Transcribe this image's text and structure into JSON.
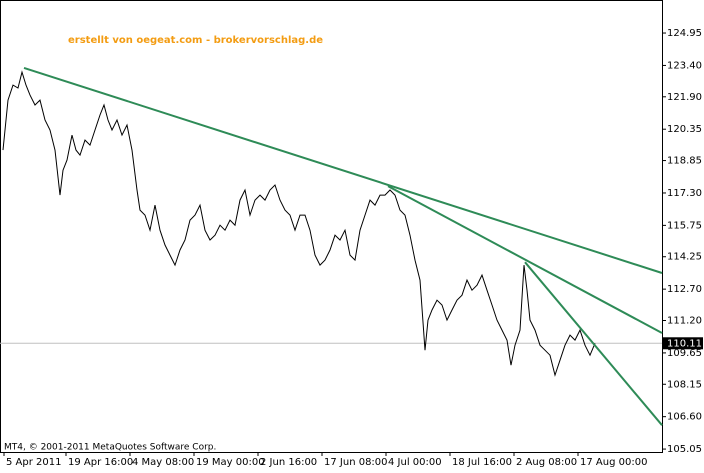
{
  "chart_data": {
    "type": "line",
    "watermark": "erstellt von oegeat.com - brokervorschlag.de",
    "copyright": "MT4, © 2001-2011 MetaQuotes Software Corp.",
    "xlim": [
      0,
      662
    ],
    "ylim": [
      104.91,
      126.53
    ],
    "xticks": [
      {
        "value": 4,
        "label": "5 Apr 2011"
      },
      {
        "value": 66,
        "label": "19 Apr 16:00"
      },
      {
        "value": 130,
        "label": "4 May 08:00"
      },
      {
        "value": 194,
        "label": "19 May 00:00"
      },
      {
        "value": 258,
        "label": "2 Jun 16:00"
      },
      {
        "value": 322,
        "label": "17 Jun 08:00"
      },
      {
        "value": 386,
        "label": "4 Jul 00:00"
      },
      {
        "value": 450,
        "label": "18 Jul 16:00"
      },
      {
        "value": 514,
        "label": "2 Aug 08:00"
      },
      {
        "value": 578,
        "label": "17 Aug 00:00"
      }
    ],
    "yticks": [
      124.95,
      {
        "value": 123.4,
        "label": "123.40"
      },
      {
        "value": 121.9,
        "label": "121.90"
      },
      120.35,
      118.85,
      {
        "value": 117.3,
        "label": "117.30"
      },
      115.75,
      114.25,
      {
        "value": 112.7,
        "label": "112.70"
      },
      {
        "value": 111.2,
        "label": "111.20"
      },
      109.65,
      108.15,
      {
        "value": 106.6,
        "label": "106.60"
      },
      105.05
    ],
    "last_price": 110.11,
    "series": [
      {
        "color": "#000000",
        "x": [
          3,
          8,
          13,
          18,
          22,
          26,
          30,
          35,
          40,
          45,
          50,
          55,
          60,
          63,
          67,
          72,
          76,
          80,
          85,
          90,
          95,
          100,
          104,
          108,
          112,
          117,
          122,
          127,
          132,
          137,
          140,
          145,
          150,
          155,
          160,
          165,
          170,
          175,
          180,
          185,
          190,
          195,
          200,
          205,
          210,
          215,
          220,
          225,
          230,
          235,
          240,
          245,
          250,
          255,
          260,
          265,
          270,
          275,
          280,
          285,
          290,
          295,
          300,
          305,
          310,
          315,
          320,
          325,
          330,
          335,
          340,
          345,
          350,
          355,
          360,
          365,
          370,
          375,
          380,
          385,
          390,
          395,
          400,
          405,
          410,
          415,
          420,
          425,
          428,
          432,
          437,
          442,
          447,
          452,
          457,
          462,
          467,
          472,
          477,
          482,
          487,
          492,
          497,
          502,
          507,
          511,
          515,
          520,
          524,
          527,
          530,
          535,
          540,
          545,
          550,
          555,
          560,
          565,
          570,
          575,
          580,
          585,
          590,
          595
        ],
        "values": [
          119.35,
          121.74,
          122.46,
          122.32,
          123.08,
          122.46,
          121.98,
          121.51,
          121.74,
          120.79,
          120.31,
          119.35,
          117.2,
          118.39,
          118.87,
          120.07,
          119.35,
          119.11,
          119.83,
          119.59,
          120.31,
          121.03,
          121.51,
          120.79,
          120.31,
          120.79,
          120.07,
          120.55,
          119.35,
          117.44,
          116.48,
          116.24,
          115.52,
          116.72,
          115.52,
          114.81,
          114.33,
          113.85,
          114.57,
          115.05,
          116.0,
          116.24,
          116.72,
          115.52,
          115.05,
          115.28,
          115.76,
          115.52,
          116.0,
          115.76,
          116.96,
          117.44,
          116.24,
          116.96,
          117.2,
          116.96,
          117.44,
          117.68,
          116.96,
          116.48,
          116.24,
          115.52,
          116.24,
          116.24,
          115.52,
          114.33,
          113.85,
          114.09,
          114.57,
          115.28,
          115.05,
          115.52,
          114.33,
          114.09,
          115.52,
          116.24,
          116.96,
          116.72,
          117.2,
          117.2,
          117.44,
          117.2,
          116.48,
          116.24,
          115.28,
          114.09,
          113.13,
          109.78,
          111.22,
          111.7,
          112.17,
          111.94,
          111.22,
          111.7,
          112.17,
          112.41,
          113.13,
          112.65,
          112.89,
          113.37,
          112.65,
          111.94,
          111.22,
          110.74,
          110.26,
          109.06,
          110.02,
          110.74,
          113.85,
          112.65,
          111.22,
          110.74,
          110.02,
          109.78,
          109.54,
          108.59,
          109.3,
          110.02,
          110.5,
          110.26,
          110.74,
          110.02,
          109.54,
          110.11
        ]
      }
    ],
    "trendlines": [
      {
        "color": "#2e8b57",
        "x": [
          24,
          662
        ],
        "values": [
          123.28,
          113.47
        ]
      },
      {
        "color": "#2e8b57",
        "x": [
          388,
          662
        ],
        "values": [
          117.63,
          110.6
        ]
      },
      {
        "color": "#2e8b57",
        "x": [
          525,
          662
        ],
        "values": [
          113.99,
          106.19
        ]
      }
    ]
  }
}
